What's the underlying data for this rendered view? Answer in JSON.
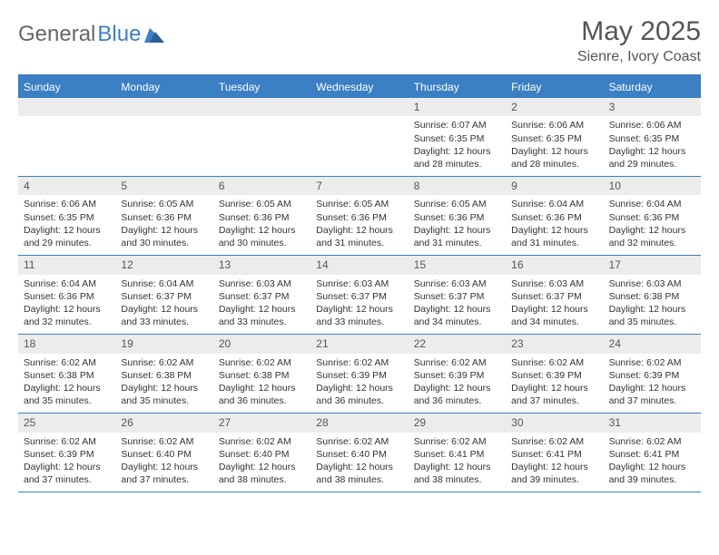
{
  "logo": {
    "text1": "General",
    "text2": "Blue"
  },
  "title": "May 2025",
  "location": "Sienre, Ivory Coast",
  "colors": {
    "accent": "#3b7fc4",
    "header_text": "#ffffff",
    "daynum_bg": "#ececec",
    "text_muted": "#555555",
    "text": "#333333",
    "background": "#ffffff"
  },
  "day_names": [
    "Sunday",
    "Monday",
    "Tuesday",
    "Wednesday",
    "Thursday",
    "Friday",
    "Saturday"
  ],
  "weeks": [
    [
      {
        "empty": true
      },
      {
        "empty": true
      },
      {
        "empty": true
      },
      {
        "empty": true
      },
      {
        "day": "1",
        "sunrise": "6:07 AM",
        "sunset": "6:35 PM",
        "daylight": "12 hours and 28 minutes."
      },
      {
        "day": "2",
        "sunrise": "6:06 AM",
        "sunset": "6:35 PM",
        "daylight": "12 hours and 28 minutes."
      },
      {
        "day": "3",
        "sunrise": "6:06 AM",
        "sunset": "6:35 PM",
        "daylight": "12 hours and 29 minutes."
      }
    ],
    [
      {
        "day": "4",
        "sunrise": "6:06 AM",
        "sunset": "6:35 PM",
        "daylight": "12 hours and 29 minutes."
      },
      {
        "day": "5",
        "sunrise": "6:05 AM",
        "sunset": "6:36 PM",
        "daylight": "12 hours and 30 minutes."
      },
      {
        "day": "6",
        "sunrise": "6:05 AM",
        "sunset": "6:36 PM",
        "daylight": "12 hours and 30 minutes."
      },
      {
        "day": "7",
        "sunrise": "6:05 AM",
        "sunset": "6:36 PM",
        "daylight": "12 hours and 31 minutes."
      },
      {
        "day": "8",
        "sunrise": "6:05 AM",
        "sunset": "6:36 PM",
        "daylight": "12 hours and 31 minutes."
      },
      {
        "day": "9",
        "sunrise": "6:04 AM",
        "sunset": "6:36 PM",
        "daylight": "12 hours and 31 minutes."
      },
      {
        "day": "10",
        "sunrise": "6:04 AM",
        "sunset": "6:36 PM",
        "daylight": "12 hours and 32 minutes."
      }
    ],
    [
      {
        "day": "11",
        "sunrise": "6:04 AM",
        "sunset": "6:36 PM",
        "daylight": "12 hours and 32 minutes."
      },
      {
        "day": "12",
        "sunrise": "6:04 AM",
        "sunset": "6:37 PM",
        "daylight": "12 hours and 33 minutes."
      },
      {
        "day": "13",
        "sunrise": "6:03 AM",
        "sunset": "6:37 PM",
        "daylight": "12 hours and 33 minutes."
      },
      {
        "day": "14",
        "sunrise": "6:03 AM",
        "sunset": "6:37 PM",
        "daylight": "12 hours and 33 minutes."
      },
      {
        "day": "15",
        "sunrise": "6:03 AM",
        "sunset": "6:37 PM",
        "daylight": "12 hours and 34 minutes."
      },
      {
        "day": "16",
        "sunrise": "6:03 AM",
        "sunset": "6:37 PM",
        "daylight": "12 hours and 34 minutes."
      },
      {
        "day": "17",
        "sunrise": "6:03 AM",
        "sunset": "6:38 PM",
        "daylight": "12 hours and 35 minutes."
      }
    ],
    [
      {
        "day": "18",
        "sunrise": "6:02 AM",
        "sunset": "6:38 PM",
        "daylight": "12 hours and 35 minutes."
      },
      {
        "day": "19",
        "sunrise": "6:02 AM",
        "sunset": "6:38 PM",
        "daylight": "12 hours and 35 minutes."
      },
      {
        "day": "20",
        "sunrise": "6:02 AM",
        "sunset": "6:38 PM",
        "daylight": "12 hours and 36 minutes."
      },
      {
        "day": "21",
        "sunrise": "6:02 AM",
        "sunset": "6:39 PM",
        "daylight": "12 hours and 36 minutes."
      },
      {
        "day": "22",
        "sunrise": "6:02 AM",
        "sunset": "6:39 PM",
        "daylight": "12 hours and 36 minutes."
      },
      {
        "day": "23",
        "sunrise": "6:02 AM",
        "sunset": "6:39 PM",
        "daylight": "12 hours and 37 minutes."
      },
      {
        "day": "24",
        "sunrise": "6:02 AM",
        "sunset": "6:39 PM",
        "daylight": "12 hours and 37 minutes."
      }
    ],
    [
      {
        "day": "25",
        "sunrise": "6:02 AM",
        "sunset": "6:39 PM",
        "daylight": "12 hours and 37 minutes."
      },
      {
        "day": "26",
        "sunrise": "6:02 AM",
        "sunset": "6:40 PM",
        "daylight": "12 hours and 37 minutes."
      },
      {
        "day": "27",
        "sunrise": "6:02 AM",
        "sunset": "6:40 PM",
        "daylight": "12 hours and 38 minutes."
      },
      {
        "day": "28",
        "sunrise": "6:02 AM",
        "sunset": "6:40 PM",
        "daylight": "12 hours and 38 minutes."
      },
      {
        "day": "29",
        "sunrise": "6:02 AM",
        "sunset": "6:41 PM",
        "daylight": "12 hours and 38 minutes."
      },
      {
        "day": "30",
        "sunrise": "6:02 AM",
        "sunset": "6:41 PM",
        "daylight": "12 hours and 39 minutes."
      },
      {
        "day": "31",
        "sunrise": "6:02 AM",
        "sunset": "6:41 PM",
        "daylight": "12 hours and 39 minutes."
      }
    ]
  ],
  "labels": {
    "sunrise": "Sunrise:",
    "sunset": "Sunset:",
    "daylight": "Daylight:"
  }
}
